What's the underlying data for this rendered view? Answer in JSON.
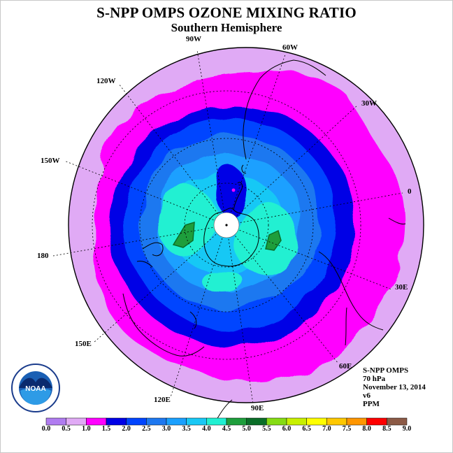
{
  "title": "S-NPP OMPS OZONE MIXING RATIO",
  "subtitle": "Southern Hemisphere",
  "logo": {
    "text": "NOAA",
    "ring_text": "NATIONAL OCEANIC AND ATMOSPHERIC ADMINISTRATION · U.S. DEPARTMENT OF COMMERCE"
  },
  "longitude_labels": [
    "90W",
    "60W",
    "30W",
    "0",
    "30E",
    "60E",
    "90E",
    "120E",
    "150E",
    "180",
    "150W",
    "120W"
  ],
  "info": {
    "instrument": "S-NPP OMPS",
    "level": "70 hPa",
    "date": "November 13, 2014",
    "version": "v6",
    "units": "PPM"
  },
  "colorbar": {
    "labels": [
      "0.0",
      "0.5",
      "1.0",
      "1.5",
      "2.0",
      "2.5",
      "3.0",
      "3.5",
      "4.0",
      "4.5",
      "5.0",
      "5.5",
      "6.0",
      "6.5",
      "7.0",
      "7.5",
      "8.0",
      "8.5",
      "9.0"
    ],
    "colors": [
      "#b07cf0",
      "#e0aaf5",
      "#ff00ff",
      "#0000e6",
      "#0044ff",
      "#1e78f0",
      "#1aa0ff",
      "#19c8f5",
      "#20f0d2",
      "#1e9e3c",
      "#0a6e28",
      "#86dc14",
      "#c8f000",
      "#ffff00",
      "#ffc800",
      "#ff9600",
      "#ff0000",
      "#8c5a46"
    ]
  },
  "chart_data": {
    "type": "heatmap",
    "projection": "south polar stereographic",
    "variable": "ozone mixing ratio",
    "units": "PPM",
    "pressure_level": "70 hPa",
    "date": "November 13, 2014",
    "levels": [
      0.0,
      0.5,
      1.0,
      1.5,
      2.0,
      2.5,
      3.0,
      3.5,
      4.0,
      4.5,
      5.0,
      5.5,
      6.0,
      6.5,
      7.0,
      7.5,
      8.0,
      8.5,
      9.0
    ],
    "observed_range": [
      0.5,
      5.0
    ],
    "features": [
      {
        "region": "outer edge (~20S)",
        "value_range": [
          0.5,
          1.0
        ]
      },
      {
        "region": "mid-latitudes",
        "value_range": [
          1.0,
          1.5
        ]
      },
      {
        "region": "ring ~50-60S",
        "value_range": [
          1.5,
          2.5
        ]
      },
      {
        "region": "collar near 60-70S",
        "value_range": [
          3.0,
          4.0
        ]
      },
      {
        "region": "maxima near 150W and 60E",
        "value_range": [
          4.5,
          5.0
        ]
      },
      {
        "region": "Antarctic Peninsula ozone hole core",
        "value_range": [
          0.5,
          2.0
        ]
      }
    ]
  }
}
